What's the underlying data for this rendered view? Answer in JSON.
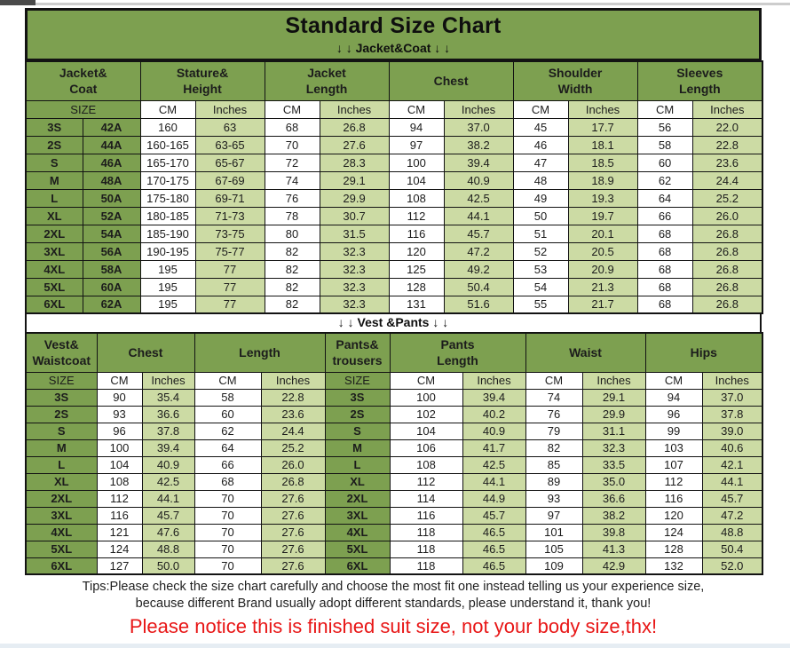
{
  "page": {
    "title": "Standard Size Chart",
    "jacket_section_label": "↓ ↓  Jacket&Coat ↓ ↓",
    "vest_section_label": "↓ ↓  Vest &Pants ↓ ↓",
    "tips_line1": "Tips:Please check the size chart carefully and choose the most fit one instead telling us your experience size,",
    "tips_line2": "because different Brand usually adopt different standards, please understand it, thank you!",
    "notice": "Please notice this is finished suit size, not your body size,thx!"
  },
  "colors": {
    "header_green": "#7da050",
    "light_green": "#ccdba4",
    "border_black": "#131313",
    "notice_red": "#e81616"
  },
  "jacket_table": {
    "group_headers": [
      "Jacket&\nCoat",
      "Stature&\nHeight",
      "Jacket\nLength",
      "Chest",
      "Shoulder\nWidth",
      "Sleeves\nLength"
    ],
    "size_label": "SIZE",
    "units": {
      "cm": "CM",
      "inches": "Inches"
    },
    "rows": [
      {
        "size": "3S",
        "code": "42A",
        "values": [
          "160",
          "63",
          "68",
          "26.8",
          "94",
          "37.0",
          "45",
          "17.7",
          "56",
          "22.0"
        ]
      },
      {
        "size": "2S",
        "code": "44A",
        "values": [
          "160-165",
          "63-65",
          "70",
          "27.6",
          "97",
          "38.2",
          "46",
          "18.1",
          "58",
          "22.8"
        ]
      },
      {
        "size": "S",
        "code": "46A",
        "values": [
          "165-170",
          "65-67",
          "72",
          "28.3",
          "100",
          "39.4",
          "47",
          "18.5",
          "60",
          "23.6"
        ]
      },
      {
        "size": "M",
        "code": "48A",
        "values": [
          "170-175",
          "67-69",
          "74",
          "29.1",
          "104",
          "40.9",
          "48",
          "18.9",
          "62",
          "24.4"
        ]
      },
      {
        "size": "L",
        "code": "50A",
        "values": [
          "175-180",
          "69-71",
          "76",
          "29.9",
          "108",
          "42.5",
          "49",
          "19.3",
          "64",
          "25.2"
        ]
      },
      {
        "size": "XL",
        "code": "52A",
        "values": [
          "180-185",
          "71-73",
          "78",
          "30.7",
          "112",
          "44.1",
          "50",
          "19.7",
          "66",
          "26.0"
        ]
      },
      {
        "size": "2XL",
        "code": "54A",
        "values": [
          "185-190",
          "73-75",
          "80",
          "31.5",
          "116",
          "45.7",
          "51",
          "20.1",
          "68",
          "26.8"
        ]
      },
      {
        "size": "3XL",
        "code": "56A",
        "values": [
          "190-195",
          "75-77",
          "82",
          "32.3",
          "120",
          "47.2",
          "52",
          "20.5",
          "68",
          "26.8"
        ]
      },
      {
        "size": "4XL",
        "code": "58A",
        "values": [
          "195",
          "77",
          "82",
          "32.3",
          "125",
          "49.2",
          "53",
          "20.9",
          "68",
          "26.8"
        ]
      },
      {
        "size": "5XL",
        "code": "60A",
        "values": [
          "195",
          "77",
          "82",
          "32.3",
          "128",
          "50.4",
          "54",
          "21.3",
          "68",
          "26.8"
        ]
      },
      {
        "size": "6XL",
        "code": "62A",
        "values": [
          "195",
          "77",
          "82",
          "32.3",
          "131",
          "51.6",
          "55",
          "21.7",
          "68",
          "26.8"
        ]
      }
    ]
  },
  "vest_table": {
    "group_headers": [
      "Vest&\nWaistcoat",
      "Chest",
      "Length",
      "Pants&\ntrousers",
      "Pants\nLength",
      "Waist",
      "Hips"
    ],
    "group_colspans": [
      1,
      2,
      2,
      1,
      2,
      2,
      2
    ],
    "size_label": "SIZE",
    "units": {
      "cm": "CM",
      "inches": "Inches"
    },
    "rows": [
      {
        "size": "3S",
        "vest_values": [
          "90",
          "35.4",
          "58",
          "22.8"
        ],
        "pants_size": "3S",
        "pants_values": [
          "100",
          "39.4",
          "74",
          "29.1",
          "94",
          "37.0"
        ]
      },
      {
        "size": "2S",
        "vest_values": [
          "93",
          "36.6",
          "60",
          "23.6"
        ],
        "pants_size": "2S",
        "pants_values": [
          "102",
          "40.2",
          "76",
          "29.9",
          "96",
          "37.8"
        ]
      },
      {
        "size": "S",
        "vest_values": [
          "96",
          "37.8",
          "62",
          "24.4"
        ],
        "pants_size": "S",
        "pants_values": [
          "104",
          "40.9",
          "79",
          "31.1",
          "99",
          "39.0"
        ]
      },
      {
        "size": "M",
        "vest_values": [
          "100",
          "39.4",
          "64",
          "25.2"
        ],
        "pants_size": "M",
        "pants_values": [
          "106",
          "41.7",
          "82",
          "32.3",
          "103",
          "40.6"
        ]
      },
      {
        "size": "L",
        "vest_values": [
          "104",
          "40.9",
          "66",
          "26.0"
        ],
        "pants_size": "L",
        "pants_values": [
          "108",
          "42.5",
          "85",
          "33.5",
          "107",
          "42.1"
        ]
      },
      {
        "size": "XL",
        "vest_values": [
          "108",
          "42.5",
          "68",
          "26.8"
        ],
        "pants_size": "XL",
        "pants_values": [
          "112",
          "44.1",
          "89",
          "35.0",
          "112",
          "44.1"
        ]
      },
      {
        "size": "2XL",
        "vest_values": [
          "112",
          "44.1",
          "70",
          "27.6"
        ],
        "pants_size": "2XL",
        "pants_values": [
          "114",
          "44.9",
          "93",
          "36.6",
          "116",
          "45.7"
        ]
      },
      {
        "size": "3XL",
        "vest_values": [
          "116",
          "45.7",
          "70",
          "27.6"
        ],
        "pants_size": "3XL",
        "pants_values": [
          "116",
          "45.7",
          "97",
          "38.2",
          "120",
          "47.2"
        ]
      },
      {
        "size": "4XL",
        "vest_values": [
          "121",
          "47.6",
          "70",
          "27.6"
        ],
        "pants_size": "4XL",
        "pants_values": [
          "118",
          "46.5",
          "101",
          "39.8",
          "124",
          "48.8"
        ]
      },
      {
        "size": "5XL",
        "vest_values": [
          "124",
          "48.8",
          "70",
          "27.6"
        ],
        "pants_size": "5XL",
        "pants_values": [
          "118",
          "46.5",
          "105",
          "41.3",
          "128",
          "50.4"
        ]
      },
      {
        "size": "6XL",
        "vest_values": [
          "127",
          "50.0",
          "70",
          "27.6"
        ],
        "pants_size": "6XL",
        "pants_values": [
          "118",
          "46.5",
          "109",
          "42.9",
          "132",
          "52.0"
        ]
      }
    ]
  }
}
